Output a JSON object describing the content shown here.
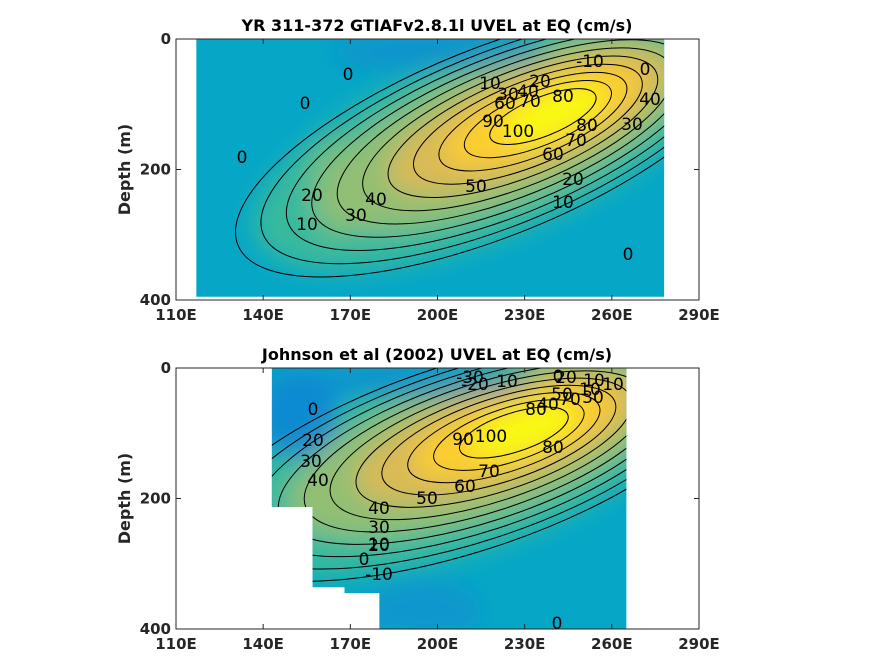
{
  "chart_data": [
    {
      "type": "contour",
      "title": "YR 311-372 GTIAFv2.8.1l UVEL at EQ (cm/s)",
      "xlabel": "",
      "ylabel": "Depth (m)",
      "xlim": [
        110,
        290
      ],
      "ylim": [
        0,
        400
      ],
      "y_reversed": true,
      "xticks": [
        110,
        140,
        170,
        200,
        230,
        260,
        290
      ],
      "xticklabels": [
        "110E",
        "140E",
        "170E",
        "200E",
        "230E",
        "260E",
        "290E"
      ],
      "yticks": [
        0,
        200,
        400
      ],
      "yticklabels": [
        "0",
        "200",
        "400"
      ],
      "data_extent": {
        "lon": [
          117,
          278
        ],
        "depth": [
          0,
          395
        ]
      },
      "core": {
        "lon": 238,
        "depth": 115,
        "max_cm_s": 100
      },
      "contour_labels": [
        "0",
        "0",
        "0",
        "0",
        "0",
        "-10",
        "10",
        "30",
        "20",
        "60",
        "40",
        "70",
        "80",
        "90",
        "100",
        "60",
        "70",
        "80",
        "30",
        "40",
        "50",
        "40",
        "30",
        "20",
        "10",
        "20",
        "10"
      ]
    },
    {
      "type": "contour",
      "title": "Johnson et al (2002) UVEL at EQ (cm/s)",
      "xlabel": "",
      "ylabel": "Depth (m)",
      "xlim": [
        110,
        290
      ],
      "ylim": [
        0,
        400
      ],
      "y_reversed": true,
      "xticks": [
        110,
        140,
        170,
        200,
        230,
        260,
        290
      ],
      "xticklabels": [
        "110E",
        "140E",
        "170E",
        "200E",
        "230E",
        "260E",
        "290E"
      ],
      "yticks": [
        0,
        200,
        400
      ],
      "yticklabels": [
        "0",
        "200",
        "400"
      ],
      "data_extent": {
        "lon": [
          143,
          265
        ],
        "depth": [
          0,
          400
        ]
      },
      "core": {
        "lon": 228,
        "depth": 95,
        "max_cm_s": 100
      },
      "contour_labels": [
        "-30",
        "-20",
        "10",
        "0",
        "-10",
        "50",
        "40",
        "30",
        "20",
        "10",
        "10",
        "80",
        "70",
        "90",
        "100",
        "80",
        "70",
        "60",
        "50",
        "40",
        "30",
        "20",
        "10",
        "0",
        "-10",
        "0",
        "40",
        "20",
        "30",
        "0"
      ]
    }
  ],
  "colormap": [
    "#3e26a8",
    "#1482d4",
    "#06a7c6",
    "#38b99e",
    "#92bf73",
    "#d9ba56",
    "#fcce2e",
    "#f9fb0e"
  ]
}
